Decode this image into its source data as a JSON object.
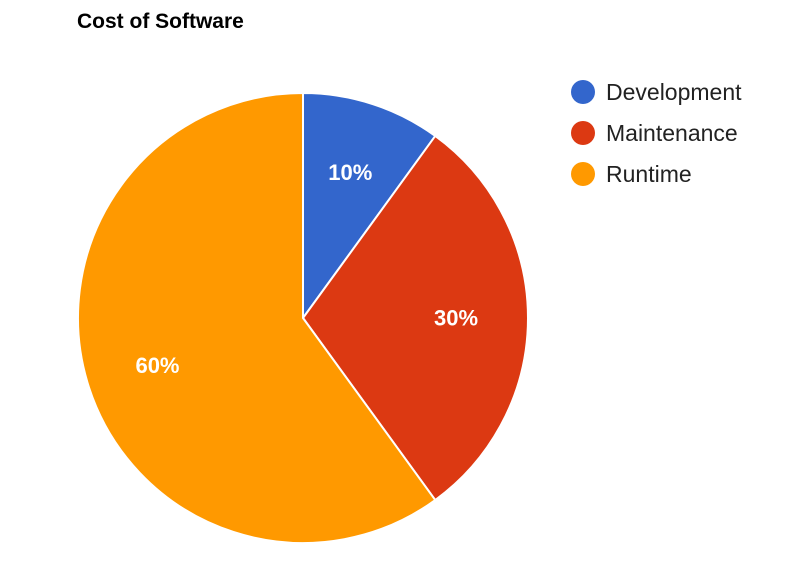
{
  "chart_data": {
    "type": "pie",
    "title": "Cost of Software",
    "categories": [
      "Development",
      "Maintenance",
      "Runtime"
    ],
    "values": [
      10,
      30,
      60
    ],
    "labels": [
      "10%",
      "30%",
      "60%"
    ],
    "colors": [
      "#3366cc",
      "#dc3912",
      "#ff9900"
    ],
    "legend_position": "right"
  }
}
